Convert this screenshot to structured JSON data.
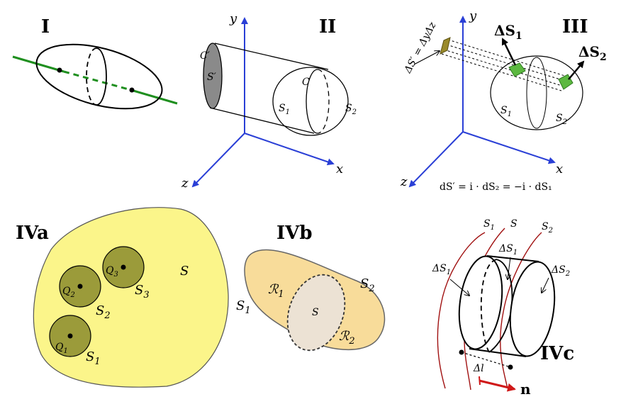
{
  "panels": {
    "p1": {
      "label": "I"
    },
    "p2": {
      "label": "II",
      "axis_y": "y",
      "axis_x": "x",
      "axis_z": "z",
      "c_prime": "C′",
      "s_prime": "S′",
      "c": "C",
      "s1": "S",
      "s1_sub": "1",
      "s2": "S",
      "s2_sub": "2"
    },
    "p3": {
      "label": "III",
      "axis_y": "y",
      "axis_x": "x",
      "axis_z": "z",
      "ds1_main": "ΔS",
      "ds1_sub": "1",
      "ds2_main": "ΔS",
      "ds2_sub": "2",
      "ds_prime": "ΔS′ = ΔyΔz",
      "s1": "S",
      "s1_sub": "1",
      "s2": "S",
      "s2_sub": "2",
      "formula": "dS′ = i · dS₂ = −i · dS₁"
    },
    "p4a": {
      "label": "IVa",
      "s": "S",
      "q1": "Q",
      "q1_sub": "1",
      "q2": "Q",
      "q2_sub": "2",
      "q3": "Q",
      "q3_sub": "3",
      "s1": "S",
      "s1_sub": "1",
      "s2": "S",
      "s2_sub": "2",
      "s3": "S",
      "s3_sub": "3"
    },
    "p4b": {
      "label": "IVb",
      "r1": "ℛ",
      "r1_sub": "1",
      "r2": "ℛ",
      "r2_sub": "2",
      "s": "S",
      "s1": "S",
      "s1_sub": "1",
      "s2": "S",
      "s2_sub": "2"
    },
    "p4c": {
      "label": "IVc",
      "s1": "S",
      "s1_sub": "1",
      "s": "S",
      "s2": "S",
      "s2_sub": "2",
      "dsl": "ΔS",
      "dsl_sub": "1",
      "dsm": "ΔS",
      "dsm_sub": "1",
      "dsr": "ΔS",
      "dsr_sub": "2",
      "dl": "Δl",
      "n": "n"
    }
  },
  "colors": {
    "green_line": "#1f8f1f",
    "axis_blue": "#2a3fd6",
    "gray_face": "#8a8a8a",
    "olive_patch": "#9a8a2a",
    "green_patch": "#5cb840",
    "yellow_region": "#fbf58a",
    "olive_ball": "#9b9b3a",
    "tan_region": "#f8dc9a",
    "tan_inner": "#ece2d4",
    "red_curve": "#a01010",
    "red_arrow": "#d01818"
  }
}
